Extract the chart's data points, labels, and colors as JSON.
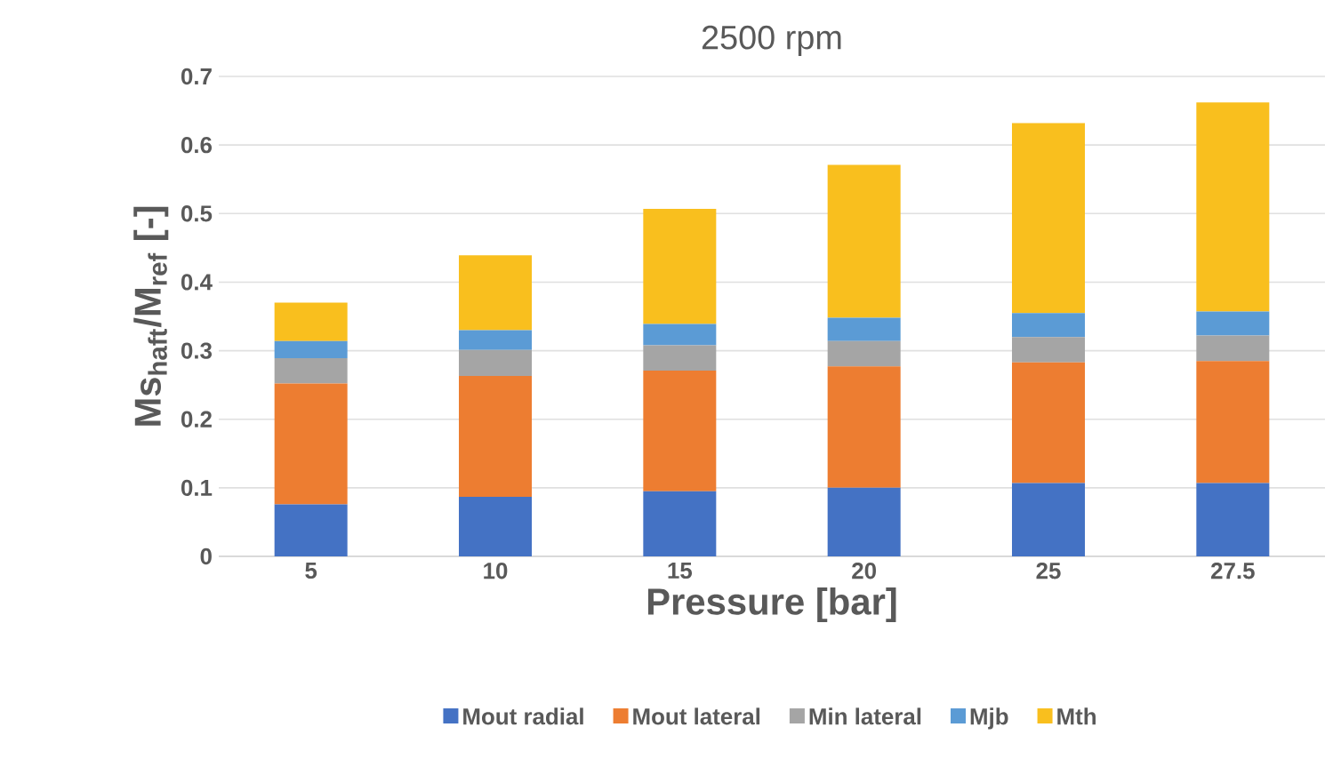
{
  "chart_data": {
    "type": "bar",
    "title": "2500 rpm",
    "xlabel": "Pressure [bar]",
    "ylabel": "Ms$_{haft}$/M$_{ref}$  [-]",
    "categories": [
      "5",
      "10",
      "15",
      "20",
      "25",
      "27.5"
    ],
    "stacked": true,
    "series": [
      {
        "name": "Mout radial",
        "color": "#4472c4",
        "values": [
          0.076,
          0.087,
          0.095,
          0.1,
          0.107,
          0.107
        ]
      },
      {
        "name": "Mout lateral",
        "color": "#ed7d31",
        "values": [
          0.176,
          0.176,
          0.176,
          0.177,
          0.176,
          0.178
        ]
      },
      {
        "name": "Min lateral",
        "color": "#a5a5a5",
        "values": [
          0.037,
          0.038,
          0.037,
          0.037,
          0.037,
          0.037
        ]
      },
      {
        "name": "Mjb",
        "color": "#5b9bd5",
        "values": [
          0.025,
          0.029,
          0.031,
          0.034,
          0.035,
          0.035
        ]
      },
      {
        "name": "Mth",
        "color": "#f9bf1e",
        "values": [
          0.056,
          0.109,
          0.168,
          0.223,
          0.277,
          0.305
        ]
      }
    ],
    "ylim": [
      0,
      0.7
    ],
    "yticks": [
      0,
      0.1,
      0.2,
      0.3,
      0.4,
      0.5,
      0.6,
      0.7
    ],
    "grid": "y",
    "legend": "bottom"
  }
}
